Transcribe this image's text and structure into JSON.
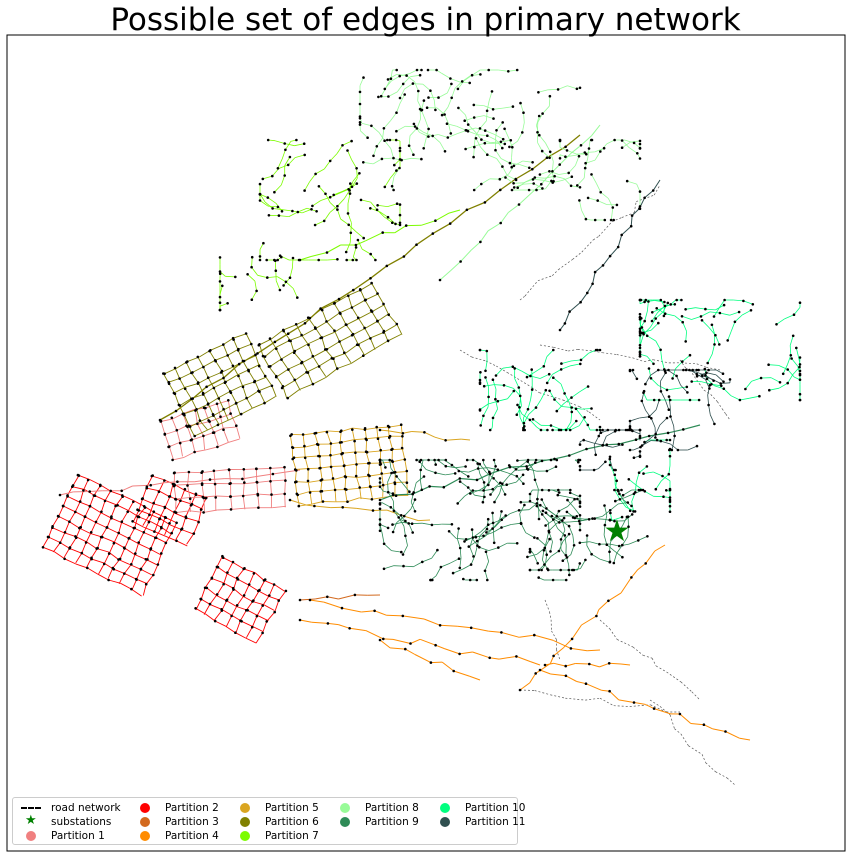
{
  "chart_data": {
    "type": "network",
    "title": "Possible set of edges in primary network",
    "xlabel": "",
    "ylabel": "",
    "grid": false,
    "legend_placement": "lower-left",
    "legend": [
      {
        "label": "road network",
        "marker": "dashed-line",
        "color": "#000000"
      },
      {
        "label": "substations",
        "marker": "star",
        "color": "#008000"
      },
      {
        "label": "Partition 1",
        "marker": "dot",
        "color": "#f08080"
      },
      {
        "label": "Partition 2",
        "marker": "dot",
        "color": "#ff0000"
      },
      {
        "label": "Partition 3",
        "marker": "dot",
        "color": "#d2691e"
      },
      {
        "label": "Partition 4",
        "marker": "dot",
        "color": "#ff8c00"
      },
      {
        "label": "Partition 5",
        "marker": "dot",
        "color": "#daa520"
      },
      {
        "label": "Partition 6",
        "marker": "dot",
        "color": "#808000"
      },
      {
        "label": "Partition 7",
        "marker": "dot",
        "color": "#7cfc00"
      },
      {
        "label": "Partition 8",
        "marker": "dot",
        "color": "#98fb98"
      },
      {
        "label": "Partition 9",
        "marker": "dot",
        "color": "#2e8b57"
      },
      {
        "label": "Partition 10",
        "marker": "dot",
        "color": "#00ff7f"
      },
      {
        "label": "Partition 11",
        "marker": "dot",
        "color": "#2f4f4f"
      }
    ]
  }
}
